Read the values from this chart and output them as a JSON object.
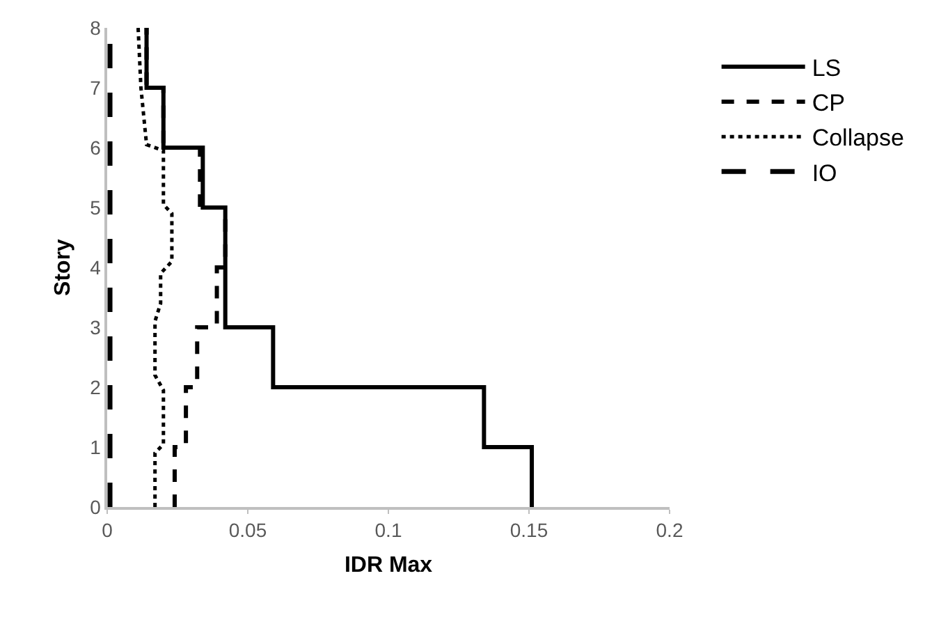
{
  "chart_data": {
    "type": "line",
    "orientation": "horizontal",
    "xlabel": "IDR Max",
    "ylabel": "Story",
    "xlim": [
      0,
      0.2
    ],
    "xticks": [
      0,
      0.05,
      0.1,
      0.15,
      0.2
    ],
    "ylim": [
      0,
      8
    ],
    "yticks": [
      0,
      1,
      2,
      3,
      4,
      5,
      6,
      7,
      8
    ],
    "grid": false,
    "legend": "right",
    "marker": "none",
    "series": [
      {
        "name": "LS",
        "type": "step",
        "color": "#000000",
        "line_style": "solid",
        "x": [
          0,
          1,
          2,
          3,
          5,
          6,
          7,
          8
        ],
        "values": [
          0.151,
          0.134,
          0.059,
          0.042,
          0.034,
          0.02,
          0.014,
          0.014
        ]
      },
      {
        "name": "CP",
        "type": "step",
        "color": "#000000",
        "line_style": "dashed",
        "x": [
          0,
          1,
          2,
          3,
          4,
          5,
          6,
          7,
          8
        ],
        "values": [
          0.024,
          0.028,
          0.032,
          0.039,
          0.042,
          0.033,
          0.02,
          0.014,
          0.014
        ]
      },
      {
        "name": "Collapse",
        "color": "#000000",
        "line_style": "dotted",
        "x": [
          0,
          0.9,
          1.05,
          1.95,
          2.2,
          3.1,
          3.4,
          3.9,
          4.1,
          4.9,
          5.05,
          5.95,
          6.05,
          7,
          8
        ],
        "values": [
          0.017,
          0.017,
          0.02,
          0.02,
          0.017,
          0.017,
          0.019,
          0.019,
          0.023,
          0.023,
          0.02,
          0.02,
          0.014,
          0.012,
          0.011
        ]
      },
      {
        "name": "IO",
        "color": "#000000",
        "line_style": "longdash",
        "x": [
          0,
          8
        ],
        "values": [
          0.001,
          0.001
        ]
      }
    ]
  }
}
